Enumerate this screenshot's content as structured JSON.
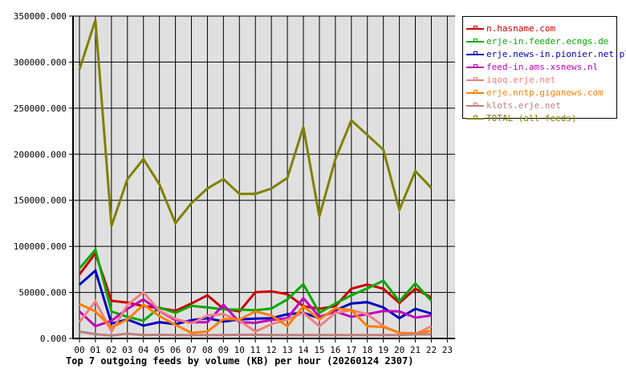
{
  "chart_data": {
    "type": "line",
    "title": "Top 7 outgoing feeds by volume (KB) per hour (20260124 2307)",
    "xlabel": "",
    "ylabel": "",
    "ylim": [
      0,
      350000
    ],
    "yticks": [
      "0.000",
      "50000.000",
      "100000.000",
      "150000.000",
      "200000.000",
      "250000.000",
      "300000.000",
      "350000.000"
    ],
    "ytick_values": [
      0,
      50000,
      100000,
      150000,
      200000,
      250000,
      300000,
      350000
    ],
    "categories": [
      "00",
      "01",
      "02",
      "03",
      "04",
      "05",
      "06",
      "07",
      "08",
      "09",
      "10",
      "11",
      "12",
      "13",
      "14",
      "15",
      "16",
      "17",
      "18",
      "19",
      "20",
      "21",
      "22",
      "23"
    ],
    "grid": true,
    "legend_position": "right",
    "plot_background": "#e0e0e0",
    "series": [
      {
        "name": "n.hasname.com",
        "color": "#cc0000",
        "values": [
          69500,
          92500,
          40900,
          39000,
          35100,
          33000,
          30000,
          38000,
          46800,
          32200,
          29300,
          50200,
          51100,
          48100,
          35100,
          32200,
          35100,
          54000,
          58600,
          54000,
          38600,
          54000,
          44400
        ]
      },
      {
        "name": "erje-in.feeder.ecngs.de",
        "color": "#00aa00",
        "values": [
          76000,
          96300,
          29300,
          23500,
          19200,
          33500,
          27900,
          35400,
          33700,
          31600,
          31300,
          30700,
          32500,
          42400,
          58900,
          27900,
          38000,
          46800,
          54400,
          62700,
          40300,
          59800,
          40900
        ]
      },
      {
        "name": "erje.news-in.pionier.net.pl",
        "color": "#0000c0",
        "values": [
          58300,
          73700,
          16300,
          20600,
          13900,
          17700,
          15500,
          19900,
          22000,
          18300,
          20600,
          21500,
          22000,
          26400,
          27900,
          22000,
          30700,
          38000,
          39400,
          33700,
          22000,
          32200,
          27000
        ]
      },
      {
        "name": "feed-in.ams.xsnews.nl",
        "color": "#c000c0",
        "values": [
          29300,
          13300,
          19200,
          32200,
          42400,
          29800,
          20000,
          17700,
          17700,
          36600,
          17700,
          17000,
          20000,
          22000,
          43800,
          23500,
          29300,
          23500,
          26500,
          29900,
          29300,
          22600,
          25000
        ]
      },
      {
        "name": "iqoq.erje.net",
        "color": "#f08080",
        "values": [
          17700,
          40300,
          7500,
          36600,
          50200,
          30000,
          21300,
          16300,
          25000,
          26400,
          19200,
          7500,
          15500,
          20600,
          27900,
          13300,
          27900,
          30700,
          26400,
          13300,
          6100,
          4600,
          13300
        ]
      },
      {
        "name": "erje.nntp.giganews.com",
        "color": "#ff8000",
        "values": [
          37400,
          29300,
          11900,
          20600,
          36600,
          24300,
          14800,
          6100,
          7500,
          21200,
          20600,
          29300,
          25000,
          13300,
          35100,
          20600,
          32800,
          30700,
          13300,
          12500,
          6100,
          5500,
          8400
        ]
      },
      {
        "name": "klots.erje.net",
        "color": "#c08080",
        "values": [
          7500,
          4600,
          3200,
          5200,
          3700,
          4000,
          3700,
          3700,
          3700,
          3700,
          4000,
          4000,
          3700,
          3700,
          3700,
          3700,
          3700,
          3700,
          3700,
          3700,
          3700,
          4600,
          4600
        ]
      },
      {
        "name": "TOTAL (all feeds)",
        "color": "#808000",
        "values": [
          291900,
          345600,
          122100,
          173000,
          194800,
          167200,
          125100,
          146900,
          162800,
          173000,
          157000,
          157000,
          162800,
          174400,
          229600,
          132300,
          194700,
          236800,
          220900,
          204900,
          139600,
          181700,
          163400
        ]
      }
    ]
  },
  "title": "Top 7 outgoing feeds by volume (KB) per hour (20260124 2307)",
  "legend": {
    "items": [
      {
        "label": "n.hasname.com",
        "color": "#cc0000"
      },
      {
        "label": "erje-in.feeder.ecngs.de",
        "color": "#00aa00"
      },
      {
        "label": "erje.news-in.pionier.net.pl",
        "color": "#0000c0"
      },
      {
        "label": "feed-in.ams.xsnews.nl",
        "color": "#c000c0"
      },
      {
        "label": "iqoq.erje.net",
        "color": "#f08080"
      },
      {
        "label": "erje.nntp.giganews.com",
        "color": "#ff8000"
      },
      {
        "label": "klots.erje.net",
        "color": "#c08080"
      },
      {
        "label": "TOTAL (all feeds)",
        "color": "#808000"
      }
    ]
  }
}
